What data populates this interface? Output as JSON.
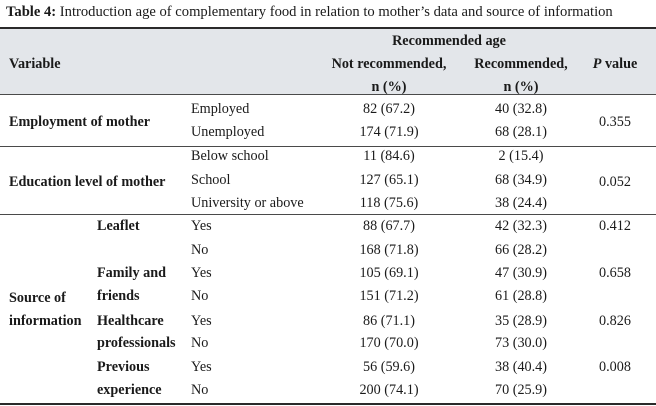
{
  "caption": {
    "label": "Table 4:",
    "text": " Introduction age of complementary food in relation to mother’s data and source of information"
  },
  "header": {
    "variable": "Variable",
    "group": "Recommended age",
    "not_recommended_1": "Not recommended,",
    "not_recommended_2": "n (%)",
    "recommended_1": "Recommended,",
    "recommended_2": "n (%)",
    "p_label_1": "P",
    "p_label_2": " value"
  },
  "sections": {
    "employment": {
      "label": "Employment of mother",
      "p": "0.355",
      "rows": [
        {
          "category": "Employed",
          "not_rec": "82 (67.2)",
          "rec": "40 (32.8)"
        },
        {
          "category": "Unemployed",
          "not_rec": "174 (71.9)",
          "rec": "68 (28.1)"
        }
      ]
    },
    "education": {
      "label": "Education level of mother",
      "p": "0.052",
      "rows": [
        {
          "category": "Below school",
          "not_rec": "11 (84.6)",
          "rec": "2 (15.4)"
        },
        {
          "category": "School",
          "not_rec": "127 (65.1)",
          "rec": "68 (34.9)"
        },
        {
          "category": "University or above",
          "not_rec": "118 (75.6)",
          "rec": "38 (24.4)"
        }
      ]
    },
    "source": {
      "label_1": "Source of",
      "label_2": "information",
      "groups": [
        {
          "name_1": "Leaflet",
          "name_2": "",
          "p": "0.412",
          "rows": [
            {
              "category": "Yes",
              "not_rec": "88 (67.7)",
              "rec": "42 (32.3)"
            },
            {
              "category": "No",
              "not_rec": "168 (71.8)",
              "rec": "66 (28.2)"
            }
          ]
        },
        {
          "name_1": "Family and",
          "name_2": "friends",
          "p": "0.658",
          "rows": [
            {
              "category": "Yes",
              "not_rec": "105 (69.1)",
              "rec": "47 (30.9)"
            },
            {
              "category": "No",
              "not_rec": "151 (71.2)",
              "rec": "61 (28.8)"
            }
          ]
        },
        {
          "name_1": "Healthcare",
          "name_2": "professionals",
          "p": "0.826",
          "rows": [
            {
              "category": "Yes",
              "not_rec": "86 (71.1)",
              "rec": "35 (28.9)"
            },
            {
              "category": "No",
              "not_rec": "170 (70.0)",
              "rec": "73 (30.0)"
            }
          ]
        },
        {
          "name_1": "Previous",
          "name_2": "experience",
          "p": "0.008",
          "rows": [
            {
              "category": "Yes",
              "not_rec": "56 (59.6)",
              "rec": "38 (40.4)"
            },
            {
              "category": "No",
              "not_rec": "200 (74.1)",
              "rec": "70 (25.9)"
            }
          ]
        }
      ]
    }
  }
}
